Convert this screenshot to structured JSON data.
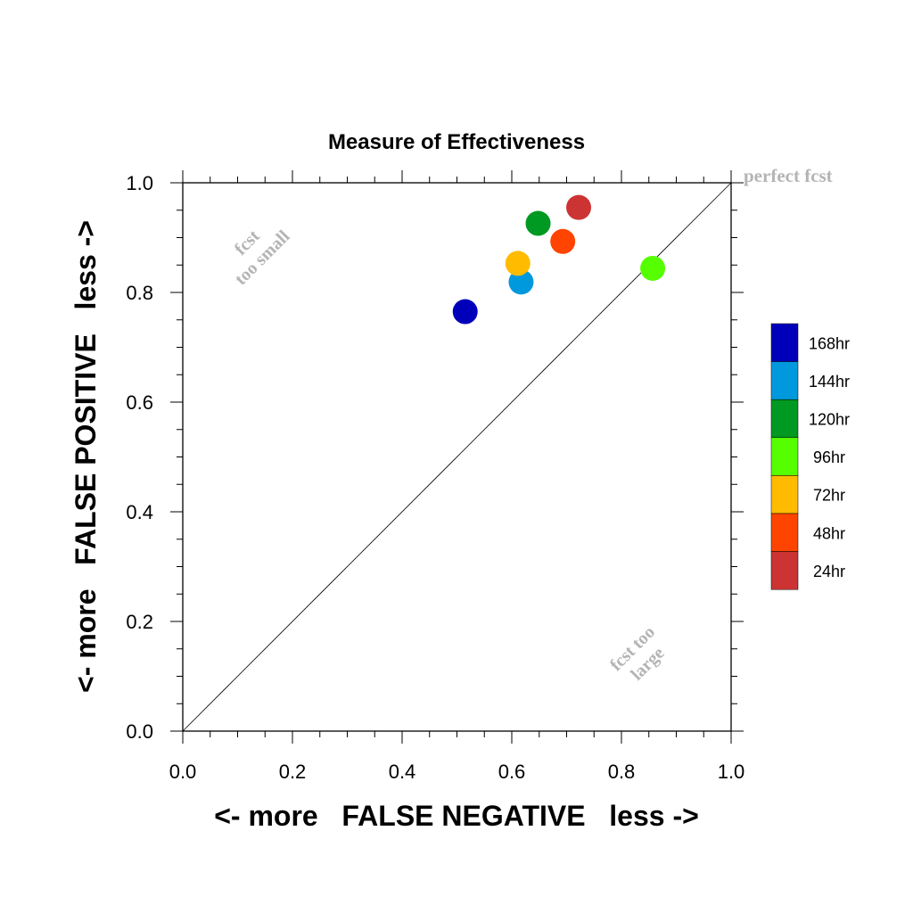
{
  "chart_data": {
    "type": "scatter",
    "title": "Measure of Effectiveness",
    "xlabel": "<- more   FALSE NEGATIVE   less ->",
    "ylabel": "<- more   FALSE POSITIVE   less ->",
    "xlim": [
      0,
      1
    ],
    "ylim": [
      0,
      1
    ],
    "x_ticks": [
      "0.0",
      "0.2",
      "0.4",
      "0.6",
      "0.8",
      "1.0"
    ],
    "y_ticks": [
      "0.0",
      "0.2",
      "0.4",
      "0.6",
      "0.8",
      "1.0"
    ],
    "grid": false,
    "diagonal_line": true,
    "legend_position": "right",
    "points": [
      {
        "label": "168hr",
        "x": 0.515,
        "y": 0.765,
        "color": "#0000bb"
      },
      {
        "label": "144hr",
        "x": 0.617,
        "y": 0.819,
        "color": "#0099dd"
      },
      {
        "label": "120hr",
        "x": 0.648,
        "y": 0.926,
        "color": "#009922"
      },
      {
        "label": "96hr",
        "x": 0.857,
        "y": 0.844,
        "color": "#55ff00"
      },
      {
        "label": "72hr",
        "x": 0.611,
        "y": 0.853,
        "color": "#ffbb00"
      },
      {
        "label": "48hr",
        "x": 0.693,
        "y": 0.893,
        "color": "#ff4400"
      },
      {
        "label": "24hr",
        "x": 0.722,
        "y": 0.955,
        "color": "#cc3333"
      }
    ],
    "annotations": {
      "perfect": "perfect fcst",
      "too_small": [
        "fcst",
        "too small"
      ],
      "too_large": [
        "fcst too",
        "large"
      ]
    }
  }
}
